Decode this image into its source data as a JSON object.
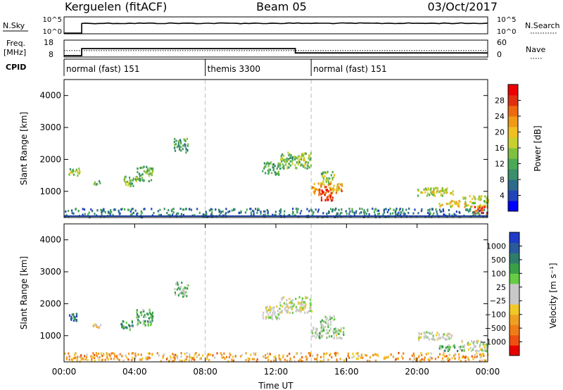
{
  "header": {
    "station": "Kerguelen (fitACF)",
    "beam": "Beam 05",
    "date": "03/Oct/2017"
  },
  "nsky_panel": {
    "left_label": "N.Sky",
    "left_ticks": [
      "10^5",
      "10^0"
    ],
    "right_ticks": [
      "10^5",
      "10^0"
    ],
    "right_label": "N.Search",
    "right_legend_style": "dotted"
  },
  "freq_panel": {
    "left_label_line1": "Freq.",
    "left_label_line2": "[MHz]",
    "left_ticks": [
      18,
      8
    ],
    "right_ticks": [
      60,
      0
    ],
    "right_label": "Nave",
    "right_legend_style": "dotted",
    "freq_segments": [
      {
        "t_start": 0.0,
        "t_end": 1.0,
        "freq_mhz": 8.4
      },
      {
        "t_start": 1.0,
        "t_end": 13.1,
        "freq_mhz": 13.0
      },
      {
        "t_start": 13.1,
        "t_end": 24.0,
        "freq_mhz": 10.2
      }
    ],
    "nave_segments": [
      {
        "t_start": 0.0,
        "t_end": 8.0,
        "nave": 22
      },
      {
        "t_start": 8.0,
        "t_end": 24.0,
        "nave": 22
      }
    ]
  },
  "cpid_panel": {
    "label": "CPID",
    "modes": [
      {
        "t_start": 0,
        "name": "normal (fast) 151"
      },
      {
        "t_start": 8,
        "name": "themis 3300"
      },
      {
        "t_start": 14,
        "name": "normal (fast) 151"
      }
    ]
  },
  "chart_data": [
    {
      "type": "heatmap",
      "title": "",
      "ylabel": "Slant Range [km]",
      "xlabel": "",
      "xlim": [
        0,
        24
      ],
      "ylim": [
        180,
        4500
      ],
      "yticks": [
        1000,
        2000,
        3000,
        4000
      ],
      "colorbar": {
        "label": "Power [dB]",
        "ticks": [
          "28",
          "24",
          "20",
          "16",
          "12",
          "8",
          "4"
        ],
        "colors": [
          "#0000ff",
          "#2244bb",
          "#2e6a8a",
          "#3a8f6c",
          "#4aaa55",
          "#7fc040",
          "#c8d030",
          "#f0c020",
          "#f09a18",
          "#ee6a10",
          "#e03010",
          "#ee0000"
        ]
      },
      "echo_regions": [
        {
          "t0": 0.25,
          "t1": 0.95,
          "r0": 1450,
          "r1": 1700,
          "level": 0.45
        },
        {
          "t0": 1.6,
          "t1": 2.1,
          "r0": 1200,
          "r1": 1350,
          "level": 0.35
        },
        {
          "t0": 3.2,
          "t1": 3.9,
          "r0": 1150,
          "r1": 1450,
          "level": 0.4
        },
        {
          "t0": 4.0,
          "t1": 5.0,
          "r0": 1300,
          "r1": 1800,
          "level": 0.4
        },
        {
          "t0": 6.2,
          "t1": 7.0,
          "r0": 2200,
          "r1": 2650,
          "level": 0.35
        },
        {
          "t0": 11.2,
          "t1": 12.2,
          "r0": 1500,
          "r1": 1900,
          "level": 0.35
        },
        {
          "t0": 12.2,
          "t1": 14.0,
          "r0": 1700,
          "r1": 2200,
          "level": 0.45
        },
        {
          "t0": 14.0,
          "t1": 15.8,
          "r0": 900,
          "r1": 1250,
          "level": 0.7
        },
        {
          "t0": 14.4,
          "t1": 15.2,
          "r0": 700,
          "r1": 1050,
          "level": 0.9
        },
        {
          "t0": 14.5,
          "t1": 15.3,
          "r0": 1250,
          "r1": 1600,
          "level": 0.45
        },
        {
          "t0": 20.0,
          "t1": 22.0,
          "r0": 850,
          "r1": 1100,
          "level": 0.5
        },
        {
          "t0": 20.8,
          "t1": 21.6,
          "r0": 950,
          "r1": 1100,
          "level": 0.6
        },
        {
          "t0": 22.5,
          "t1": 24.0,
          "r0": 500,
          "r1": 850,
          "level": 0.55
        },
        {
          "t0": 23.2,
          "t1": 24.0,
          "r0": 250,
          "r1": 500,
          "level": 0.85
        },
        {
          "t0": 21.2,
          "t1": 22.5,
          "r0": 500,
          "r1": 700,
          "level": 0.6
        },
        {
          "t0": 0.0,
          "t1": 24.0,
          "r0": 180,
          "r1": 450,
          "level": 0.25
        }
      ]
    },
    {
      "type": "heatmap",
      "title": "",
      "ylabel": "Slant Range [km]",
      "xlabel": "Time UT",
      "xlim": [
        0,
        24
      ],
      "ylim": [
        180,
        4500
      ],
      "yticks": [
        1000,
        2000,
        3000,
        4000
      ],
      "xticks": [
        "00:00",
        "04:00",
        "08:00",
        "12:00",
        "16:00",
        "20:00",
        "00:00"
      ],
      "colorbar": {
        "label": "Velocity [m s⁻¹]",
        "ticks": [
          "1000",
          "500",
          "100",
          "25",
          "−25",
          "−100",
          "−500",
          "−1000"
        ],
        "colors": [
          "#e80000",
          "#ee5010",
          "#f07c18",
          "#f0a020",
          "#f0c828",
          "#c8c8c8",
          "#c8c8c8",
          "#66cc44",
          "#3aa048",
          "#2e7c6c",
          "#2a5a9c",
          "#1e3cc8"
        ]
      },
      "echo_regions": [
        {
          "t0": 0.25,
          "t1": 0.95,
          "r0": 1450,
          "r1": 1700,
          "level": 0.85
        },
        {
          "t0": 1.6,
          "t1": 2.1,
          "r0": 1200,
          "r1": 1350,
          "level": 0.35
        },
        {
          "t0": 3.2,
          "t1": 3.9,
          "r0": 1150,
          "r1": 1450,
          "level": 0.7
        },
        {
          "t0": 4.0,
          "t1": 5.0,
          "r0": 1300,
          "r1": 1800,
          "level": 0.65
        },
        {
          "t0": 6.2,
          "t1": 7.0,
          "r0": 2200,
          "r1": 2650,
          "level": 0.6
        },
        {
          "t0": 11.2,
          "t1": 12.2,
          "r0": 1500,
          "r1": 1900,
          "level": 0.5
        },
        {
          "t0": 12.2,
          "t1": 14.0,
          "r0": 1700,
          "r1": 2200,
          "level": 0.5
        },
        {
          "t0": 14.0,
          "t1": 15.8,
          "r0": 900,
          "r1": 1250,
          "level": 0.55
        },
        {
          "t0": 14.5,
          "t1": 15.3,
          "r0": 1250,
          "r1": 1600,
          "level": 0.62
        },
        {
          "t0": 20.0,
          "t1": 22.0,
          "r0": 850,
          "r1": 1100,
          "level": 0.5
        },
        {
          "t0": 22.5,
          "t1": 24.0,
          "r0": 500,
          "r1": 850,
          "level": 0.5
        },
        {
          "t0": 21.2,
          "t1": 22.5,
          "r0": 500,
          "r1": 700,
          "level": 0.65
        },
        {
          "t0": 0.0,
          "t1": 24.0,
          "r0": 180,
          "r1": 450,
          "level": 0.3
        }
      ]
    }
  ]
}
